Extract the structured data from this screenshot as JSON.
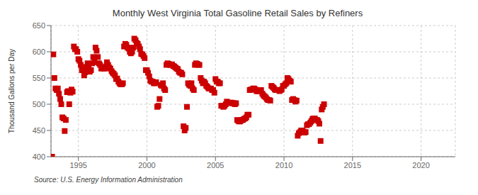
{
  "chart_data": {
    "type": "scatter",
    "title": "Monthly West Virginia Total Gasoline Retail Sales by Refiners",
    "ylabel": "Thousand Gallons per Day",
    "annotations": [
      "Source: U.S. Energy Information Administration"
    ],
    "color": "#cc0000",
    "marker": "square",
    "grid": true,
    "xlim": [
      1993.0,
      2022.5
    ],
    "ylim": [
      400,
      650
    ],
    "xticks": [
      1995,
      2000,
      2005,
      2010,
      2015,
      2020
    ],
    "yticks": [
      400,
      450,
      500,
      550,
      600,
      650
    ],
    "x": [
      1993.08,
      1993.17,
      1993.25,
      1993.33,
      1993.42,
      1993.5,
      1993.58,
      1993.67,
      1993.75,
      1993.83,
      1993.92,
      1994.0,
      1994.08,
      1994.17,
      1994.25,
      1994.33,
      1994.42,
      1994.5,
      1994.58,
      1994.67,
      1994.75,
      1994.83,
      1994.92,
      1995.0,
      1995.08,
      1995.17,
      1995.25,
      1995.33,
      1995.42,
      1995.5,
      1995.58,
      1995.67,
      1995.75,
      1995.83,
      1995.92,
      1996.0,
      1996.08,
      1996.17,
      1996.25,
      1996.33,
      1996.42,
      1996.5,
      1996.58,
      1996.67,
      1996.75,
      1996.83,
      1996.92,
      1997.0,
      1997.08,
      1997.17,
      1997.25,
      1997.33,
      1997.42,
      1997.5,
      1997.58,
      1997.67,
      1997.75,
      1997.83,
      1997.92,
      1998.0,
      1998.08,
      1998.17,
      1998.25,
      1998.33,
      1998.42,
      1998.5,
      1998.58,
      1998.67,
      1998.75,
      1998.83,
      1998.92,
      1999.0,
      1999.08,
      1999.17,
      1999.25,
      1999.33,
      1999.42,
      1999.5,
      1999.58,
      1999.67,
      1999.75,
      1999.83,
      1999.92,
      2000.0,
      2000.08,
      2000.17,
      2000.25,
      2000.33,
      2000.42,
      2000.5,
      2000.58,
      2000.67,
      2000.75,
      2000.83,
      2000.92,
      2001.0,
      2001.08,
      2001.17,
      2001.25,
      2001.33,
      2001.42,
      2001.5,
      2001.58,
      2001.67,
      2001.75,
      2001.83,
      2001.92,
      2002.0,
      2002.08,
      2002.17,
      2002.25,
      2002.33,
      2002.42,
      2002.5,
      2002.58,
      2002.67,
      2002.75,
      2002.83,
      2002.92,
      2003.0,
      2003.08,
      2003.17,
      2003.25,
      2003.33,
      2003.42,
      2003.5,
      2003.58,
      2003.67,
      2003.75,
      2003.83,
      2003.92,
      2004.0,
      2004.08,
      2004.17,
      2004.25,
      2004.33,
      2004.42,
      2004.5,
      2004.58,
      2004.67,
      2004.75,
      2004.83,
      2004.92,
      2005.0,
      2005.08,
      2005.17,
      2005.25,
      2005.33,
      2005.42,
      2005.5,
      2005.58,
      2005.67,
      2005.75,
      2005.83,
      2005.92,
      2006.0,
      2006.08,
      2006.17,
      2006.25,
      2006.33,
      2006.42,
      2006.5,
      2006.58,
      2006.67,
      2006.75,
      2006.83,
      2006.92,
      2007.0,
      2007.08,
      2007.17,
      2007.25,
      2007.33,
      2007.42,
      2007.5,
      2007.58,
      2007.67,
      2007.75,
      2007.83,
      2007.92,
      2008.0,
      2008.08,
      2008.17,
      2008.25,
      2008.33,
      2008.42,
      2008.5,
      2008.58,
      2008.67,
      2008.75,
      2008.83,
      2008.92,
      2009.0,
      2009.08,
      2009.17,
      2009.25,
      2009.33,
      2009.42,
      2009.5,
      2009.58,
      2009.67,
      2009.75,
      2009.83,
      2009.92,
      2010.0,
      2010.08,
      2010.17,
      2010.25,
      2010.33,
      2010.42,
      2010.5,
      2010.58,
      2010.67,
      2010.75,
      2010.83,
      2010.92,
      2011.0,
      2011.08,
      2011.17,
      2011.25,
      2011.33,
      2011.42,
      2011.5,
      2011.58,
      2011.67,
      2011.75,
      2011.83,
      2011.92,
      2012.0,
      2012.08,
      2012.17,
      2012.25,
      2012.33,
      2012.42,
      2012.5,
      2012.58,
      2012.67,
      2012.75,
      2012.83,
      2012.92
    ],
    "values": [
      400,
      595,
      550,
      530,
      527,
      530,
      520,
      510,
      500,
      475,
      473,
      449,
      470,
      523,
      525,
      500,
      522,
      528,
      524,
      610,
      605,
      605,
      600,
      586,
      583,
      575,
      565,
      565,
      555,
      561,
      571,
      578,
      575,
      562,
      565,
      578,
      590,
      580,
      608,
      602,
      590,
      578,
      575,
      568,
      570,
      568,
      568,
      572,
      580,
      575,
      570,
      568,
      563,
      560,
      558,
      555,
      548,
      549,
      543,
      540,
      538,
      538,
      540,
      610,
      615,
      613,
      608,
      606,
      600,
      597,
      600,
      608,
      625,
      622,
      617,
      615,
      610,
      605,
      596,
      595,
      592,
      588,
      565,
      565,
      560,
      553,
      545,
      543,
      543,
      540,
      540,
      542,
      495,
      497,
      510,
      537,
      535,
      540,
      530,
      527,
      575,
      578,
      577,
      575,
      575,
      576,
      573,
      572,
      570,
      568,
      567,
      562,
      560,
      560,
      557,
      458,
      450,
      455,
      495,
      540,
      537,
      535,
      540,
      530,
      527,
      575,
      578,
      577,
      575,
      575,
      550,
      545,
      540,
      543,
      540,
      535,
      533,
      530,
      530,
      530,
      527,
      527,
      522,
      548,
      543,
      543,
      540,
      540,
      497,
      497,
      495,
      497,
      500,
      505,
      503,
      502,
      503,
      503,
      502,
      502,
      500,
      502,
      470,
      468,
      467,
      468,
      470,
      470,
      472,
      473,
      475,
      480,
      480,
      527,
      528,
      528,
      530,
      530,
      528,
      525,
      525,
      525,
      527,
      527,
      520,
      517,
      515,
      513,
      510,
      508,
      508,
      507,
      535,
      533,
      531,
      528,
      527,
      527,
      527,
      525,
      527,
      528,
      535,
      535,
      538,
      540,
      550,
      548,
      545,
      543,
      508,
      510,
      508,
      505,
      507,
      440,
      445,
      447,
      450,
      450,
      448,
      446,
      447,
      460,
      462,
      462,
      465,
      468,
      472,
      473,
      473,
      470,
      470,
      468,
      463,
      430,
      490,
      495,
      500
    ]
  }
}
